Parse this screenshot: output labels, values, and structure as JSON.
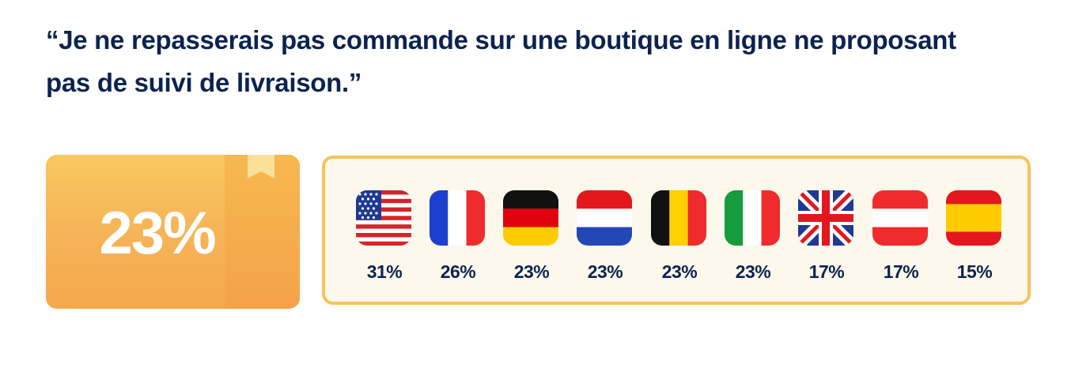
{
  "quote": "“Je ne repasserais pas commande sur une boutique en ligne ne proposant pas de suivi de livraison.”",
  "chart_data": {
    "type": "bar",
    "overall": "23%",
    "categories": [
      "USA",
      "France",
      "Germany",
      "Netherlands",
      "Belgium",
      "Italy",
      "United Kingdom",
      "Austria",
      "Spain"
    ],
    "labels": [
      "31%",
      "26%",
      "23%",
      "23%",
      "23%",
      "23%",
      "17%",
      "17%",
      "15%"
    ],
    "values": [
      31,
      26,
      23,
      23,
      23,
      23,
      17,
      17,
      15
    ]
  },
  "colors": {
    "title": "#0c2350",
    "box_light": "#f8c85f",
    "box_dark": "#f6a84c",
    "panel_border": "#f6c35c",
    "panel_bg": "#fdf8ec"
  },
  "flags": [
    "usa-flag-icon",
    "france-flag-icon",
    "germany-flag-icon",
    "netherlands-flag-icon",
    "belgium-flag-icon",
    "italy-flag-icon",
    "uk-flag-icon",
    "austria-flag-icon",
    "spain-flag-icon"
  ]
}
